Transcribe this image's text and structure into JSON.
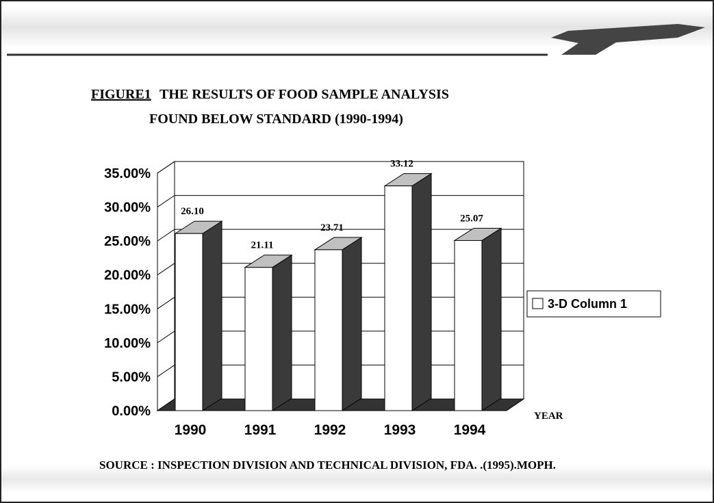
{
  "chart_data": {
    "type": "bar3d",
    "figure_label": "FIGURE1",
    "title": "THE RESULTS OF FOOD SAMPLE ANALYSIS",
    "subtitle": "FOUND  BELOW STANDARD (1990-1994)",
    "categories": [
      "1990",
      "1991",
      "1992",
      "1993",
      "1994"
    ],
    "series": [
      {
        "name": "3-D Column 1",
        "color": "#ffffff",
        "values": [
          26.1,
          21.11,
          23.71,
          33.12,
          25.07
        ],
        "value_labels": [
          "26.10",
          "21.11",
          "23.71",
          "33.12",
          "25.07"
        ]
      }
    ],
    "ylim": [
      0,
      35
    ],
    "yticks": [
      {
        "value": 0,
        "label": "0.00%"
      },
      {
        "value": 5,
        "label": "5.00%"
      },
      {
        "value": 10,
        "label": "10.00%"
      },
      {
        "value": 15,
        "label": "15.00%"
      },
      {
        "value": 20,
        "label": "20.00%"
      },
      {
        "value": 25,
        "label": "25.00%"
      },
      {
        "value": 30,
        "label": "30.00%"
      },
      {
        "value": 35,
        "label": "35.00%"
      }
    ],
    "x_label": "YEAR",
    "grid": true,
    "legend": "right",
    "source": "SOURCE : INSPECTION DIVISION AND  TECHNICAL DIVISION, FDA. .(1995).MOPH."
  }
}
